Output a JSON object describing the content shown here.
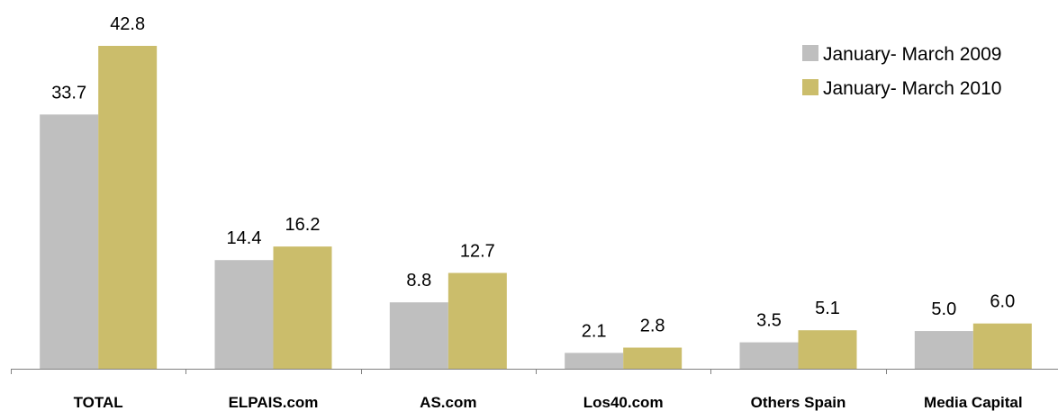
{
  "chart_data": {
    "type": "bar",
    "categories": [
      "TOTAL",
      "ELPAIS.com",
      "AS.com",
      "Los40.com",
      "Others Spain",
      "Media Capital"
    ],
    "series": [
      {
        "name": "January- March 2009",
        "color": "#bfbfbf",
        "values": [
          33.7,
          14.4,
          8.8,
          2.1,
          3.5,
          5.0
        ]
      },
      {
        "name": "January- March 2010",
        "color": "#cbbd6b",
        "values": [
          42.8,
          16.2,
          12.7,
          2.8,
          5.1,
          6.0
        ]
      }
    ],
    "value_labels": [
      [
        "33.7",
        "14.4",
        "8.8",
        "2.1",
        "3.5",
        "5.0"
      ],
      [
        "42.8",
        "16.2",
        "12.7",
        "2.8",
        "5.1",
        "6.0"
      ]
    ],
    "ylim": [
      0,
      42.8
    ],
    "grid": false,
    "legend": "top-right",
    "title": "",
    "xlabel": "",
    "ylabel": ""
  }
}
